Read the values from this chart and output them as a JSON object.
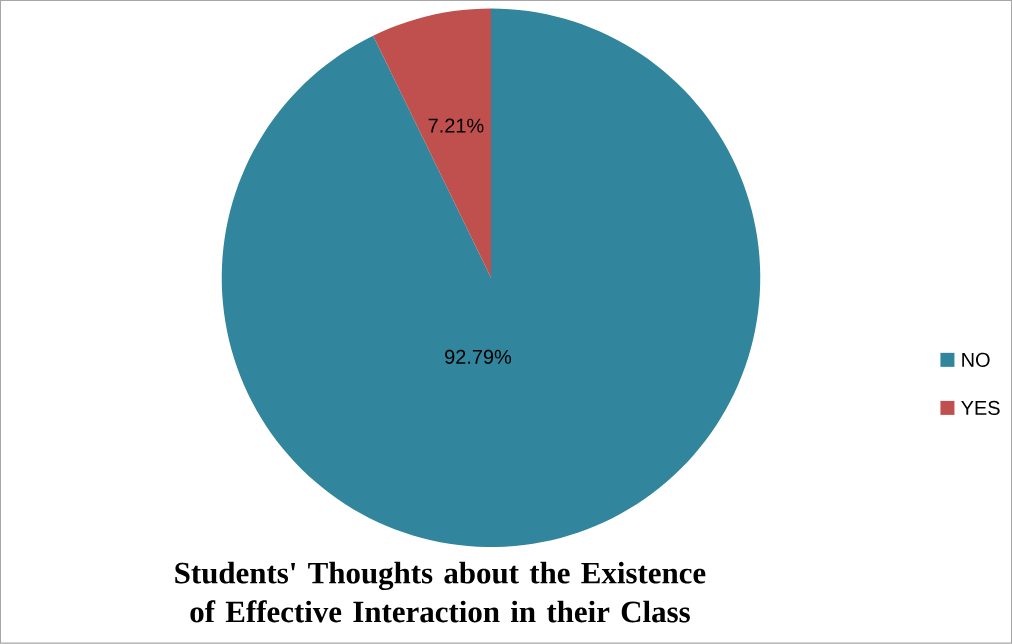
{
  "chart_data": {
    "type": "pie",
    "title": "Students' Thoughts about the Existence of Effective Interaction in their Class",
    "categories": [
      "NO",
      "YES"
    ],
    "values": [
      92.79,
      7.21
    ],
    "colors": [
      "#31859c",
      "#c0504d"
    ],
    "value_labels": [
      "92.79%",
      "7.21%"
    ],
    "legend": "right"
  }
}
